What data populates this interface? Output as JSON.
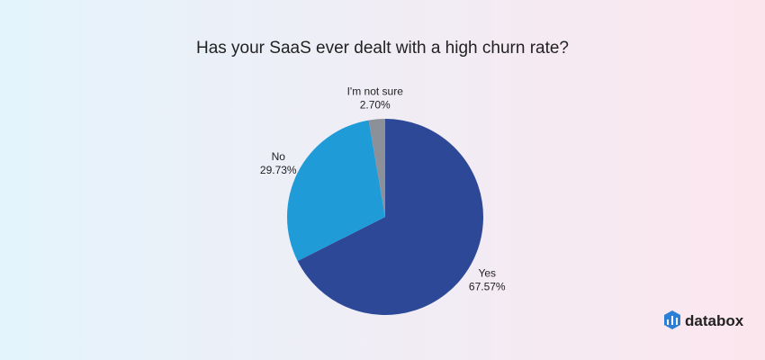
{
  "chart_data": {
    "type": "pie",
    "title": "Has your SaaS ever dealt with a high churn rate?",
    "categories": [
      "Yes",
      "No",
      "I'm not sure"
    ],
    "values": [
      67.57,
      29.73,
      2.7
    ],
    "value_labels": [
      "67.57%",
      "29.73%",
      "2.70%"
    ],
    "colors": [
      "#2e4898",
      "#1f9bd8",
      "#8b9099"
    ]
  },
  "logo_text": "databox"
}
